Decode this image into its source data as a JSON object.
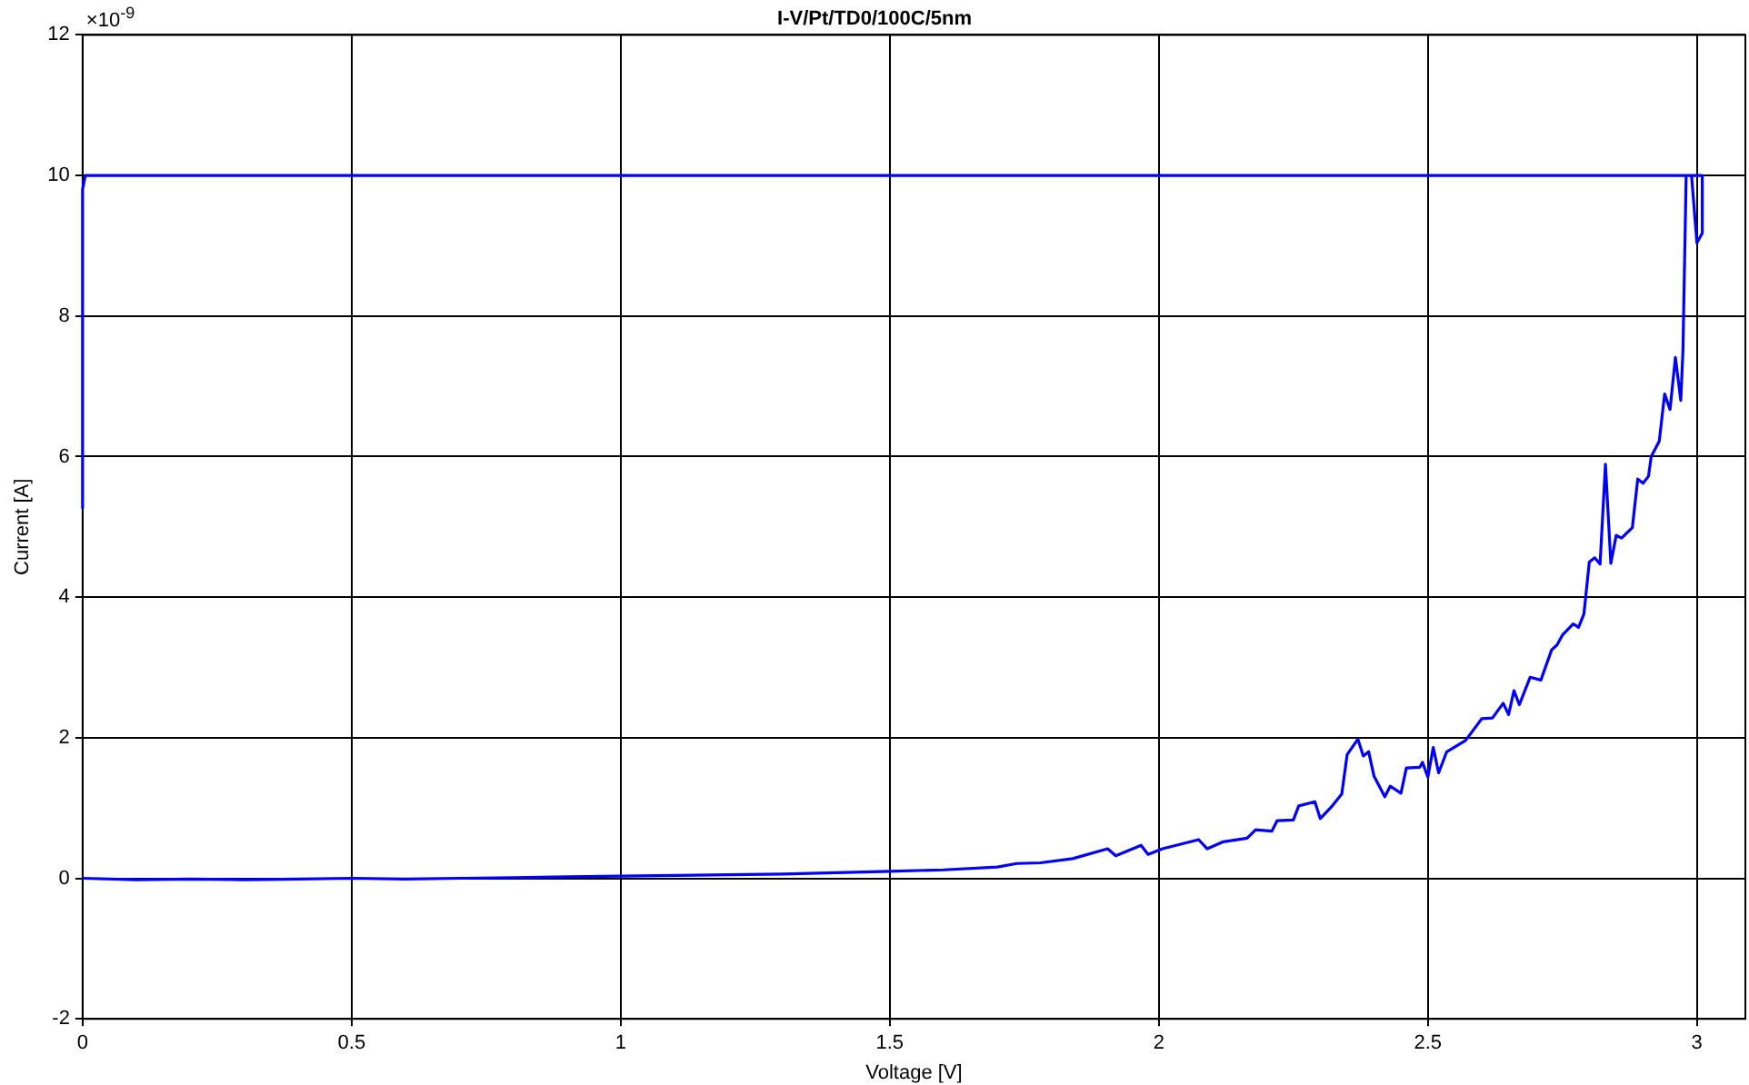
{
  "chart_data": {
    "type": "line",
    "title": "I-V/Pt/TD0/100C/5nm",
    "xlabel": "Voltage [V]",
    "ylabel": "Current [A]",
    "annotations": [
      "×10$^{-9}$"
    ],
    "x": [
      0,
      0.1,
      0.2,
      0.3,
      0.4,
      0.5,
      0.6,
      0.7,
      0.8,
      0.9,
      1.0,
      1.1,
      1.2,
      1.3,
      1.4,
      1.5,
      1.6,
      1.7,
      1.736,
      1.78,
      1.84,
      1.905,
      1.92,
      1.967,
      1.98,
      2.007,
      2.074,
      2.09,
      2.12,
      2.164,
      2.18,
      2.21,
      2.22,
      2.25,
      2.26,
      2.29,
      2.3,
      2.32,
      2.34,
      2.35,
      2.37,
      2.38,
      2.39,
      2.4,
      2.42,
      2.43,
      2.45,
      2.46,
      2.485,
      2.49,
      2.5,
      2.51,
      2.52,
      2.535,
      2.57,
      2.6,
      2.62,
      2.64,
      2.65,
      2.66,
      2.67,
      2.69,
      2.71,
      2.73,
      2.74,
      2.75,
      2.77,
      2.78,
      2.79,
      2.8,
      2.81,
      2.82,
      2.83,
      2.84,
      2.85,
      2.86,
      2.88,
      2.89,
      2.9,
      2.91,
      2.915,
      2.93,
      2.94,
      2.95,
      2.96,
      2.97,
      2.974,
      2.98,
      2.99,
      3.0,
      3.01,
      3.01,
      2.5,
      2.0,
      1.5,
      1.0,
      0.5,
      0.01,
      0.005,
      0,
      0
    ],
    "series": [
      {
        "color": "#0000ff",
        "values": [
          0,
          -0.02,
          -0.01,
          -0.02,
          -0.01,
          0,
          -0.01,
          0,
          0.01,
          0.02,
          0.03,
          0.04,
          0.05,
          0.06,
          0.08,
          0.1,
          0.12,
          0.16,
          0.21,
          0.22,
          0.28,
          0.42,
          0.32,
          0.47,
          0.34,
          0.42,
          0.55,
          0.42,
          0.52,
          0.57,
          0.69,
          0.67,
          0.82,
          0.83,
          1.03,
          1.09,
          0.85,
          1.01,
          1.2,
          1.76,
          1.98,
          1.74,
          1.8,
          1.45,
          1.16,
          1.31,
          1.21,
          1.57,
          1.58,
          1.65,
          1.44,
          1.86,
          1.5,
          1.8,
          1.96,
          2.27,
          2.28,
          2.49,
          2.33,
          2.67,
          2.47,
          2.86,
          2.82,
          3.25,
          3.32,
          3.46,
          3.62,
          3.57,
          3.76,
          4.5,
          4.56,
          4.47,
          5.89,
          4.48,
          4.88,
          4.84,
          4.99,
          5.68,
          5.62,
          5.72,
          6.0,
          6.22,
          6.89,
          6.67,
          7.41,
          6.8,
          7.5,
          10,
          10,
          9.04,
          9.18,
          10,
          10,
          10,
          10,
          10,
          10,
          10,
          10,
          9.8,
          5.27
        ]
      }
    ],
    "xlim": [
      0,
      3.09
    ],
    "xticks": [
      0,
      0.5,
      1,
      1.5,
      2,
      2.5,
      3
    ],
    "ylim": [
      -2,
      12
    ],
    "yticks": [
      -2,
      0,
      2,
      4,
      6,
      8,
      10,
      12
    ],
    "grid": true,
    "legend": false,
    "marker": "none",
    "line_style": "solid"
  }
}
